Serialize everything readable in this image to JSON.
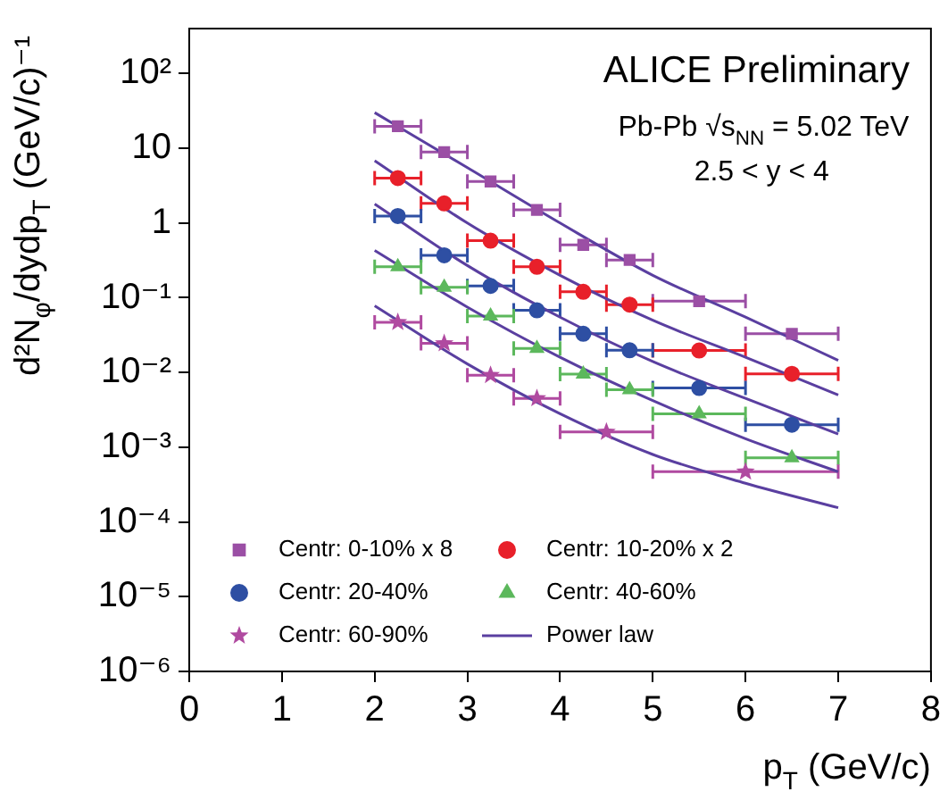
{
  "chart_data": {
    "type": "scatter",
    "xlabel": "p$_{T}$ (GeV/c)",
    "ylabel": "d²N$_{φ}$/dydp$_{T}$ (GeV/c)⁻¹",
    "annotations": [
      "ALICE Preliminary",
      "Pb-Pb √s$_{NN}$ = 5.02 TeV",
      "2.5 < y < 4"
    ],
    "log": "y",
    "grid": false,
    "legend": "bottom left",
    "xlim": [
      0,
      8
    ],
    "xticks": [
      0,
      1,
      2,
      3,
      4,
      5,
      6,
      7,
      8
    ],
    "ylim": [
      1e-06,
      400
    ],
    "yticks": [
      {
        "value": 100,
        "label": "10²"
      },
      10,
      1,
      {
        "value": 0.1,
        "label": "10⁻¹"
      },
      {
        "value": 0.01,
        "label": "10⁻²"
      },
      {
        "value": 0.001,
        "label": "10⁻³"
      },
      {
        "value": 0.0001,
        "label": "10⁻⁴"
      },
      {
        "value": 1e-05,
        "label": "10⁻⁵"
      },
      {
        "value": 1e-06,
        "label": "10⁻⁶"
      }
    ],
    "series": [
      {
        "name": "Centr: 0-10% x 8",
        "color": "#9b4fa5",
        "marker": "square",
        "x": [
          2.25,
          2.75,
          3.25,
          3.75,
          4.25,
          4.75,
          5.5,
          6.5
        ],
        "values": [
          19.7,
          8.9,
          3.6,
          1.5,
          0.51,
          0.32,
          0.09,
          0.033
        ],
        "xerrors": [
          0.25,
          0.25,
          0.25,
          0.25,
          0.25,
          0.25,
          0.5,
          0.5
        ]
      },
      {
        "name": "Centr: 10-20% x 2",
        "color": "#e8202a",
        "marker": "circle",
        "x": [
          2.25,
          2.75,
          3.25,
          3.75,
          4.25,
          4.75,
          5.5,
          6.5
        ],
        "values": [
          4.0,
          1.83,
          0.58,
          0.26,
          0.12,
          0.081,
          0.0197,
          0.0096
        ],
        "xerrors": [
          0.25,
          0.25,
          0.25,
          0.25,
          0.25,
          0.25,
          0.5,
          0.5
        ]
      },
      {
        "name": "Centr: 20-40%",
        "color": "#2e4fa3",
        "marker": "circle",
        "x": [
          2.25,
          2.75,
          3.25,
          3.75,
          4.25,
          4.75,
          5.5,
          6.5
        ],
        "values": [
          1.24,
          0.37,
          0.144,
          0.068,
          0.033,
          0.0198,
          0.0062,
          0.002
        ],
        "xerrors": [
          0.25,
          0.25,
          0.25,
          0.25,
          0.25,
          0.25,
          0.5,
          0.5
        ]
      },
      {
        "name": "Centr: 40-60%",
        "color": "#5cb85c",
        "marker": "triangle",
        "x": [
          2.25,
          2.75,
          3.25,
          3.75,
          4.25,
          4.75,
          5.5,
          6.5
        ],
        "values": [
          0.26,
          0.138,
          0.057,
          0.021,
          0.0095,
          0.0059,
          0.0028,
          0.00072
        ],
        "xerrors": [
          0.25,
          0.25,
          0.25,
          0.25,
          0.25,
          0.25,
          0.5,
          0.5
        ]
      },
      {
        "name": "Centr: 60-90%",
        "color": "#b04aa0",
        "marker": "star",
        "x": [
          2.25,
          2.75,
          3.25,
          3.75,
          4.5,
          6
        ],
        "values": [
          0.047,
          0.0245,
          0.0092,
          0.0045,
          0.0016,
          0.00047
        ],
        "xerrors": [
          0.25,
          0.25,
          0.25,
          0.25,
          0.5,
          1
        ]
      },
      {
        "name": "Power law",
        "type": "line",
        "color": "#5a3fa0",
        "marker": "none",
        "x": [
          2,
          3,
          4,
          5,
          6,
          7
        ],
        "values": [
          30,
          5.5,
          1.0,
          0.2,
          0.055,
          0.0145
        ]
      },
      {
        "type": "line",
        "color": "#5a3fa0",
        "marker": "none",
        "x": [
          2,
          3,
          4,
          5,
          6,
          7
        ],
        "values": [
          6.8,
          1.0,
          0.2,
          0.05,
          0.016,
          0.005
        ]
      },
      {
        "type": "line",
        "color": "#5a3fa0",
        "marker": "none",
        "x": [
          2,
          3,
          4,
          5,
          6,
          7
        ],
        "values": [
          1.8,
          0.27,
          0.055,
          0.014,
          0.0045,
          0.0015
        ]
      },
      {
        "type": "line",
        "color": "#5a3fa0",
        "marker": "none",
        "x": [
          2,
          3,
          4,
          5,
          6,
          7
        ],
        "values": [
          0.43,
          0.075,
          0.016,
          0.0042,
          0.0013,
          0.00047
        ]
      },
      {
        "type": "line",
        "color": "#5a3fa0",
        "marker": "none",
        "x": [
          2,
          3,
          4,
          5,
          6,
          7
        ],
        "values": [
          0.078,
          0.013,
          0.0028,
          0.0008,
          0.00033,
          0.000155
        ]
      }
    ]
  }
}
